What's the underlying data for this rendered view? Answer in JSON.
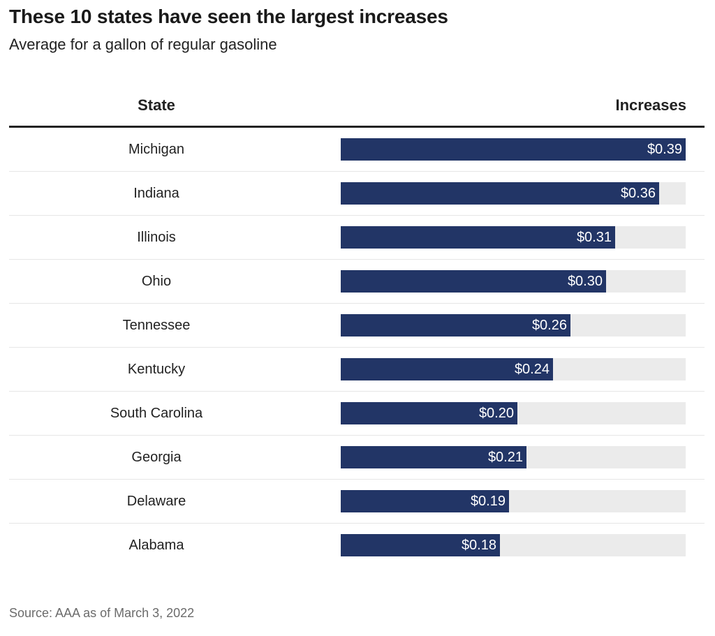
{
  "chart_data": {
    "type": "bar",
    "title": "These 10 states have seen the largest increases",
    "subtitle": "Average for a gallon of regular gasoline",
    "column_headers": {
      "category": "State",
      "value": "Increases"
    },
    "categories": [
      "Michigan",
      "Indiana",
      "Illinois",
      "Ohio",
      "Tennessee",
      "Kentucky",
      "South Carolina",
      "Georgia",
      "Delaware",
      "Alabama"
    ],
    "values": [
      0.39,
      0.36,
      0.31,
      0.3,
      0.26,
      0.24,
      0.2,
      0.21,
      0.19,
      0.18
    ],
    "value_labels": [
      "$0.39",
      "$0.36",
      "$0.31",
      "$0.30",
      "$0.26",
      "$0.24",
      "$0.20",
      "$0.21",
      "$0.19",
      "$0.18"
    ],
    "xlim": [
      0,
      0.39
    ],
    "orientation": "horizontal",
    "colors": {
      "bar": "#223566",
      "track": "#ebebeb",
      "value_text": "#ffffff"
    },
    "source": "Source: AAA as of March 3, 2022"
  }
}
